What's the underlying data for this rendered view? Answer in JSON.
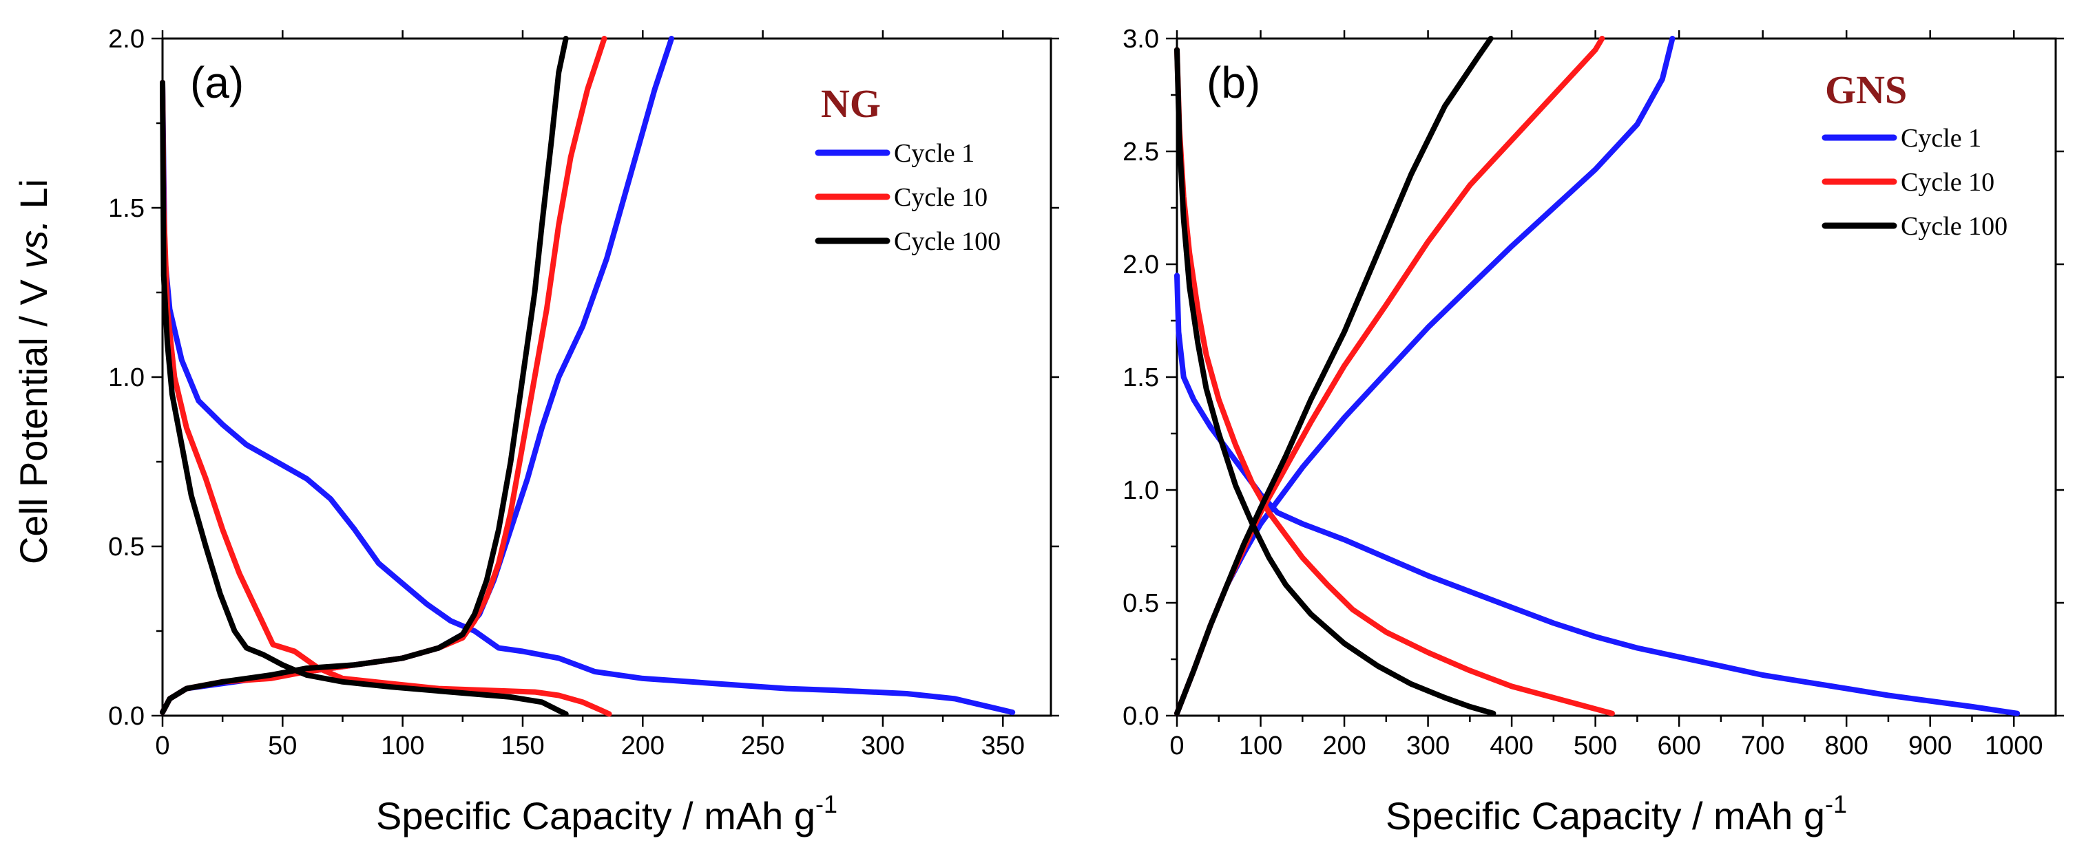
{
  "y_axis_label": {
    "main": "Cell Potential / V ",
    "italic": "vs.",
    "tail": " Li"
  },
  "x_axis_label": {
    "main": "Specific Capacity / mAh g",
    "sup": "-1"
  },
  "chart_data": [
    {
      "type": "line",
      "panel_label": "(a)",
      "legend_title": "NG",
      "legend_title_color": "#8B1A1A",
      "legend_position": "top-right",
      "xlim": [
        0,
        370
      ],
      "ylim": [
        0,
        2.0
      ],
      "xticks": [
        0,
        50,
        100,
        150,
        200,
        250,
        300,
        350
      ],
      "yticks": [
        0.0,
        0.5,
        1.0,
        1.5,
        2.0
      ],
      "xtick_labels": [
        "0",
        "50",
        "100",
        "150",
        "200",
        "250",
        "300",
        "350"
      ],
      "ytick_labels": [
        "0.0",
        "0.5",
        "1.0",
        "1.5",
        "2.0"
      ],
      "series": [
        {
          "name": "Cycle 1",
          "color": "#1a1aff",
          "discharge": [
            [
              0,
              1.87
            ],
            [
              0.5,
              1.6
            ],
            [
              1,
              1.35
            ],
            [
              3,
              1.2
            ],
            [
              8,
              1.05
            ],
            [
              15,
              0.93
            ],
            [
              25,
              0.86
            ],
            [
              35,
              0.8
            ],
            [
              50,
              0.74
            ],
            [
              60,
              0.7
            ],
            [
              70,
              0.64
            ],
            [
              80,
              0.55
            ],
            [
              90,
              0.45
            ],
            [
              100,
              0.39
            ],
            [
              110,
              0.33
            ],
            [
              120,
              0.28
            ],
            [
              130,
              0.25
            ],
            [
              140,
              0.2
            ],
            [
              150,
              0.19
            ],
            [
              165,
              0.17
            ],
            [
              180,
              0.13
            ],
            [
              200,
              0.11
            ],
            [
              220,
              0.1
            ],
            [
              240,
              0.09
            ],
            [
              260,
              0.08
            ],
            [
              280,
              0.075
            ],
            [
              310,
              0.065
            ],
            [
              330,
              0.05
            ],
            [
              345,
              0.025
            ],
            [
              354,
              0.01
            ]
          ],
          "charge": [
            [
              0,
              0.01
            ],
            [
              3,
              0.05
            ],
            [
              10,
              0.08
            ],
            [
              30,
              0.1
            ],
            [
              60,
              0.13
            ],
            [
              80,
              0.15
            ],
            [
              100,
              0.17
            ],
            [
              115,
              0.2
            ],
            [
              125,
              0.24
            ],
            [
              132,
              0.3
            ],
            [
              138,
              0.4
            ],
            [
              145,
              0.55
            ],
            [
              152,
              0.7
            ],
            [
              158,
              0.85
            ],
            [
              165,
              1.0
            ],
            [
              175,
              1.15
            ],
            [
              185,
              1.35
            ],
            [
              195,
              1.6
            ],
            [
              205,
              1.85
            ],
            [
              212,
              2.0
            ]
          ]
        },
        {
          "name": "Cycle 10",
          "color": "#ff1a1a",
          "discharge": [
            [
              0,
              1.87
            ],
            [
              0.5,
              1.5
            ],
            [
              2,
              1.2
            ],
            [
              5,
              1.0
            ],
            [
              10,
              0.85
            ],
            [
              18,
              0.7
            ],
            [
              25,
              0.55
            ],
            [
              32,
              0.42
            ],
            [
              40,
              0.3
            ],
            [
              46,
              0.21
            ],
            [
              55,
              0.19
            ],
            [
              65,
              0.14
            ],
            [
              75,
              0.11
            ],
            [
              95,
              0.095
            ],
            [
              115,
              0.08
            ],
            [
              135,
              0.075
            ],
            [
              155,
              0.07
            ],
            [
              165,
              0.06
            ],
            [
              175,
              0.04
            ],
            [
              183,
              0.015
            ],
            [
              186,
              0.005
            ]
          ],
          "charge": [
            [
              0,
              0.01
            ],
            [
              3,
              0.05
            ],
            [
              10,
              0.08
            ],
            [
              25,
              0.1
            ],
            [
              45,
              0.11
            ],
            [
              60,
              0.13
            ],
            [
              80,
              0.15
            ],
            [
              100,
              0.17
            ],
            [
              115,
              0.2
            ],
            [
              125,
              0.23
            ],
            [
              130,
              0.28
            ],
            [
              135,
              0.35
            ],
            [
              140,
              0.45
            ],
            [
              145,
              0.6
            ],
            [
              150,
              0.8
            ],
            [
              155,
              1.0
            ],
            [
              160,
              1.2
            ],
            [
              165,
              1.45
            ],
            [
              170,
              1.65
            ],
            [
              177,
              1.85
            ],
            [
              184,
              2.0
            ]
          ]
        },
        {
          "name": "Cycle 100",
          "color": "#000000",
          "discharge": [
            [
              0,
              1.87
            ],
            [
              0.5,
              1.3
            ],
            [
              2,
              1.1
            ],
            [
              4,
              0.95
            ],
            [
              8,
              0.8
            ],
            [
              12,
              0.65
            ],
            [
              18,
              0.5
            ],
            [
              24,
              0.36
            ],
            [
              30,
              0.25
            ],
            [
              35,
              0.2
            ],
            [
              42,
              0.18
            ],
            [
              50,
              0.15
            ],
            [
              60,
              0.12
            ],
            [
              75,
              0.1
            ],
            [
              95,
              0.085
            ],
            [
              120,
              0.07
            ],
            [
              145,
              0.055
            ],
            [
              158,
              0.04
            ],
            [
              165,
              0.015
            ],
            [
              168,
              0.005
            ]
          ],
          "charge": [
            [
              0,
              0.01
            ],
            [
              3,
              0.05
            ],
            [
              10,
              0.08
            ],
            [
              25,
              0.1
            ],
            [
              45,
              0.12
            ],
            [
              60,
              0.14
            ],
            [
              80,
              0.15
            ],
            [
              100,
              0.17
            ],
            [
              115,
              0.2
            ],
            [
              125,
              0.24
            ],
            [
              130,
              0.3
            ],
            [
              135,
              0.4
            ],
            [
              140,
              0.55
            ],
            [
              145,
              0.75
            ],
            [
              150,
              1.0
            ],
            [
              155,
              1.25
            ],
            [
              158,
              1.45
            ],
            [
              162,
              1.7
            ],
            [
              165,
              1.9
            ],
            [
              168,
              2.0
            ]
          ]
        }
      ]
    },
    {
      "type": "line",
      "panel_label": "(b)",
      "legend_title": "GNS",
      "legend_title_color": "#8B1A1A",
      "legend_position": "top-right",
      "xlim": [
        0,
        1050
      ],
      "ylim": [
        0,
        3.0
      ],
      "xticks": [
        0,
        100,
        200,
        300,
        400,
        500,
        600,
        700,
        800,
        900,
        1000
      ],
      "yticks": [
        0.0,
        0.5,
        1.0,
        1.5,
        2.0,
        2.5,
        3.0
      ],
      "xtick_labels": [
        "0",
        "100",
        "200",
        "300",
        "400",
        "500",
        "600",
        "700",
        "800",
        "900",
        "1000"
      ],
      "ytick_labels": [
        "0.0",
        "0.5",
        "1.0",
        "1.5",
        "2.0",
        "2.5",
        "3.0"
      ],
      "series": [
        {
          "name": "Cycle 1",
          "color": "#1a1aff",
          "discharge": [
            [
              0,
              1.95
            ],
            [
              2,
              1.7
            ],
            [
              8,
              1.5
            ],
            [
              20,
              1.4
            ],
            [
              40,
              1.28
            ],
            [
              60,
              1.18
            ],
            [
              80,
              1.08
            ],
            [
              100,
              0.98
            ],
            [
              120,
              0.9
            ],
            [
              150,
              0.85
            ],
            [
              200,
              0.78
            ],
            [
              250,
              0.7
            ],
            [
              300,
              0.62
            ],
            [
              350,
              0.55
            ],
            [
              400,
              0.48
            ],
            [
              450,
              0.41
            ],
            [
              500,
              0.35
            ],
            [
              550,
              0.3
            ],
            [
              600,
              0.26
            ],
            [
              650,
              0.22
            ],
            [
              700,
              0.18
            ],
            [
              750,
              0.15
            ],
            [
              800,
              0.12
            ],
            [
              850,
              0.09
            ],
            [
              900,
              0.065
            ],
            [
              950,
              0.04
            ],
            [
              1004,
              0.01
            ]
          ],
          "charge": [
            [
              0,
              0.01
            ],
            [
              20,
              0.2
            ],
            [
              40,
              0.4
            ],
            [
              60,
              0.58
            ],
            [
              80,
              0.72
            ],
            [
              100,
              0.85
            ],
            [
              120,
              0.95
            ],
            [
              150,
              1.1
            ],
            [
              200,
              1.32
            ],
            [
              250,
              1.52
            ],
            [
              300,
              1.72
            ],
            [
              350,
              1.9
            ],
            [
              400,
              2.08
            ],
            [
              450,
              2.25
            ],
            [
              500,
              2.42
            ],
            [
              550,
              2.62
            ],
            [
              580,
              2.82
            ],
            [
              592,
              3.0
            ]
          ]
        },
        {
          "name": "Cycle 10",
          "color": "#ff1a1a",
          "discharge": [
            [
              0,
              2.95
            ],
            [
              3,
              2.6
            ],
            [
              8,
              2.3
            ],
            [
              15,
              2.05
            ],
            [
              25,
              1.8
            ],
            [
              35,
              1.6
            ],
            [
              50,
              1.4
            ],
            [
              70,
              1.2
            ],
            [
              90,
              1.03
            ],
            [
              110,
              0.9
            ],
            [
              130,
              0.8
            ],
            [
              150,
              0.7
            ],
            [
              180,
              0.58
            ],
            [
              210,
              0.47
            ],
            [
              250,
              0.37
            ],
            [
              300,
              0.28
            ],
            [
              350,
              0.2
            ],
            [
              400,
              0.13
            ],
            [
              450,
              0.08
            ],
            [
              500,
              0.03
            ],
            [
              520,
              0.01
            ]
          ],
          "charge": [
            [
              0,
              0.01
            ],
            [
              20,
              0.2
            ],
            [
              40,
              0.4
            ],
            [
              60,
              0.58
            ],
            [
              80,
              0.74
            ],
            [
              100,
              0.9
            ],
            [
              130,
              1.1
            ],
            [
              160,
              1.3
            ],
            [
              200,
              1.55
            ],
            [
              250,
              1.82
            ],
            [
              300,
              2.1
            ],
            [
              350,
              2.35
            ],
            [
              400,
              2.55
            ],
            [
              450,
              2.75
            ],
            [
              500,
              2.95
            ],
            [
              508,
              3.0
            ]
          ]
        },
        {
          "name": "Cycle 100",
          "color": "#000000",
          "discharge": [
            [
              0,
              2.95
            ],
            [
              3,
              2.55
            ],
            [
              8,
              2.2
            ],
            [
              15,
              1.9
            ],
            [
              25,
              1.65
            ],
            [
              35,
              1.45
            ],
            [
              50,
              1.25
            ],
            [
              70,
              1.02
            ],
            [
              90,
              0.85
            ],
            [
              110,
              0.7
            ],
            [
              130,
              0.58
            ],
            [
              160,
              0.45
            ],
            [
              200,
              0.32
            ],
            [
              240,
              0.22
            ],
            [
              280,
              0.14
            ],
            [
              320,
              0.08
            ],
            [
              350,
              0.04
            ],
            [
              378,
              0.01
            ]
          ],
          "charge": [
            [
              0,
              0.01
            ],
            [
              20,
              0.2
            ],
            [
              40,
              0.4
            ],
            [
              60,
              0.58
            ],
            [
              80,
              0.76
            ],
            [
              100,
              0.92
            ],
            [
              130,
              1.15
            ],
            [
              160,
              1.4
            ],
            [
              200,
              1.7
            ],
            [
              240,
              2.05
            ],
            [
              280,
              2.4
            ],
            [
              320,
              2.7
            ],
            [
              360,
              2.92
            ],
            [
              375,
              3.0
            ]
          ]
        }
      ]
    }
  ]
}
